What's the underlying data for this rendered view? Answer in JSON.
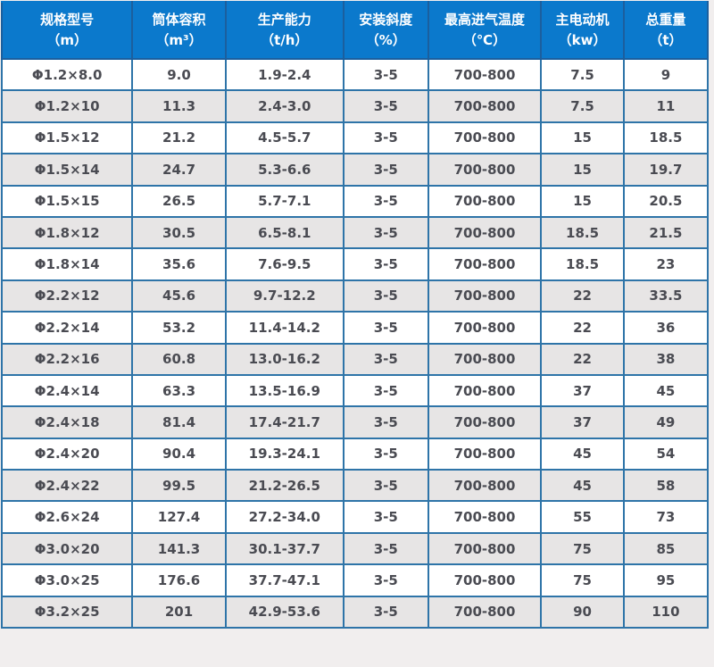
{
  "page": {
    "background": "#f1eeee"
  },
  "colors": {
    "header_bg": "#0b79cc",
    "header_text": "#ffffff",
    "header_separator": "#1b5f9e",
    "cell_border": "#2e74a8",
    "outer_border": "#29689e",
    "row_white": "#ffffff",
    "row_gray": "#e7e5e5",
    "cell_text": "#4a4b52"
  },
  "table": {
    "columns": [
      {
        "label": "规格型号",
        "unit": "（m）"
      },
      {
        "label": "筒体容积",
        "unit": "（m³）"
      },
      {
        "label": "生产能力",
        "unit": "（t/h）"
      },
      {
        "label": "安装斜度",
        "unit": "（%）"
      },
      {
        "label": "最高进气温度",
        "unit": "（℃）"
      },
      {
        "label": "主电动机",
        "unit": "（kw）"
      },
      {
        "label": "总重量",
        "unit": "（t）"
      }
    ],
    "rows": [
      [
        "Φ1.2×8.0",
        "9.0",
        "1.9-2.4",
        "3-5",
        "700-800",
        "7.5",
        "9"
      ],
      [
        "Φ1.2×10",
        "11.3",
        "2.4-3.0",
        "3-5",
        "700-800",
        "7.5",
        "11"
      ],
      [
        "Φ1.5×12",
        "21.2",
        "4.5-5.7",
        "3-5",
        "700-800",
        "15",
        "18.5"
      ],
      [
        "Φ1.5×14",
        "24.7",
        "5.3-6.6",
        "3-5",
        "700-800",
        "15",
        "19.7"
      ],
      [
        "Φ1.5×15",
        "26.5",
        "5.7-7.1",
        "3-5",
        "700-800",
        "15",
        "20.5"
      ],
      [
        "Φ1.8×12",
        "30.5",
        "6.5-8.1",
        "3-5",
        "700-800",
        "18.5",
        "21.5"
      ],
      [
        "Φ1.8×14",
        "35.6",
        "7.6-9.5",
        "3-5",
        "700-800",
        "18.5",
        "23"
      ],
      [
        "Φ2.2×12",
        "45.6",
        "9.7-12.2",
        "3-5",
        "700-800",
        "22",
        "33.5"
      ],
      [
        "Φ2.2×14",
        "53.2",
        "11.4-14.2",
        "3-5",
        "700-800",
        "22",
        "36"
      ],
      [
        "Φ2.2×16",
        "60.8",
        "13.0-16.2",
        "3-5",
        "700-800",
        "22",
        "38"
      ],
      [
        "Φ2.4×14",
        "63.3",
        "13.5-16.9",
        "3-5",
        "700-800",
        "37",
        "45"
      ],
      [
        "Φ2.4×18",
        "81.4",
        "17.4-21.7",
        "3-5",
        "700-800",
        "37",
        "49"
      ],
      [
        "Φ2.4×20",
        "90.4",
        "19.3-24.1",
        "3-5",
        "700-800",
        "45",
        "54"
      ],
      [
        "Φ2.4×22",
        "99.5",
        "21.2-26.5",
        "3-5",
        "700-800",
        "45",
        "58"
      ],
      [
        "Φ2.6×24",
        "127.4",
        "27.2-34.0",
        "3-5",
        "700-800",
        "55",
        "73"
      ],
      [
        "Φ3.0×20",
        "141.3",
        "30.1-37.7",
        "3-5",
        "700-800",
        "75",
        "85"
      ],
      [
        "Φ3.0×25",
        "176.6",
        "37.7-47.1",
        "3-5",
        "700-800",
        "75",
        "95"
      ],
      [
        "Φ3.2×25",
        "201",
        "42.9-53.6",
        "3-5",
        "700-800",
        "90",
        "110"
      ]
    ]
  }
}
